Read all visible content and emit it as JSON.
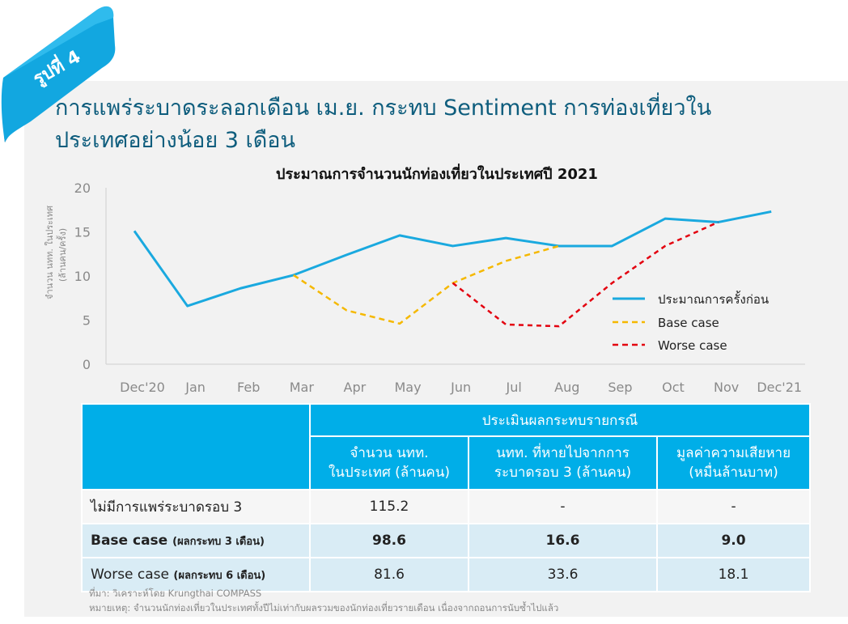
{
  "badge": "รูปที่ 4",
  "headline": {
    "line1": "การแพร่ระบาดระลอกเดือน เม.ย. กระทบ Sentiment การท่องเที่ยวใน",
    "line2": "ประเทศอย่างน้อย 3 เดือน"
  },
  "colors": {
    "brand": "#0e5d7d",
    "accent": "#00aee8",
    "line_main": "#1aa9df",
    "line_base": "#f5b800",
    "line_worse": "#e3000f"
  },
  "chart_data": {
    "type": "line",
    "title": "ประมาณการจำนวนนักท่องเที่ยวในประเทศปี 2021",
    "ylabel_line1": "จำนวน นทท. ในประเทศ",
    "ylabel_line2": "(ล้านคน/ครั้ง)",
    "categories": [
      "Dec'20",
      "Jan",
      "Feb",
      "Mar",
      "Apr",
      "May",
      "Jun",
      "Jul",
      "Aug",
      "Sep",
      "Oct",
      "Nov",
      "Dec'21"
    ],
    "ylim": [
      0,
      20
    ],
    "yticks": [
      0,
      5,
      10,
      15,
      20
    ],
    "legend_position": "right",
    "series": [
      {
        "name": "ประมาณการครั้งก่อน",
        "style": "solid",
        "values": [
          15.1,
          6.6,
          8.6,
          10.1,
          12.4,
          14.6,
          13.4,
          14.3,
          13.4,
          13.4,
          16.5,
          16.1,
          17.3
        ]
      },
      {
        "name": "Base case",
        "style": "dashed",
        "values": [
          null,
          null,
          null,
          10.1,
          6.1,
          4.6,
          9.2,
          11.7,
          13.4,
          null,
          null,
          null,
          null
        ]
      },
      {
        "name": "Worse case",
        "style": "dashed",
        "values": [
          null,
          null,
          null,
          null,
          null,
          null,
          9.2,
          4.5,
          4.3,
          9.2,
          13.4,
          16.1,
          null
        ]
      }
    ]
  },
  "table": {
    "group_header": "ประเมินผลกระทบรายกรณี",
    "columns": [
      {
        "line1": "จำนวน นทท.",
        "line2": "ในประเทศ (ล้านคน)"
      },
      {
        "line1": "นทท. ที่หายไปจากการ",
        "line2": "ระบาดรอบ 3 (ล้านคน)"
      },
      {
        "line1": "มูลค่าความเสียหาย",
        "line2": "(หมื่นล้านบาท)"
      }
    ],
    "rows": [
      {
        "label": "ไม่มีการแพร่ระบาดรอบ 3",
        "note": "",
        "values": [
          "115.2",
          "-",
          "-"
        ]
      },
      {
        "label": "Base case",
        "note": "(ผลกระทบ 3 เดือน)",
        "values": [
          "98.6",
          "16.6",
          "9.0"
        ]
      },
      {
        "label": "Worse case",
        "note": "(ผลกระทบ 6 เดือน)",
        "values": [
          "81.6",
          "33.6",
          "18.1"
        ]
      }
    ]
  },
  "footnotes": {
    "source": "ที่มา: วิเคราะห์โดย Krungthai COMPASS",
    "note": "หมายเหตุ: จำนวนนักท่องเที่ยวในประเทศทั้งปีไม่เท่ากับผลรวมของนักท่องเที่ยวรายเดือน เนื่องจากถอนการนับซ้ำไปแล้ว"
  }
}
